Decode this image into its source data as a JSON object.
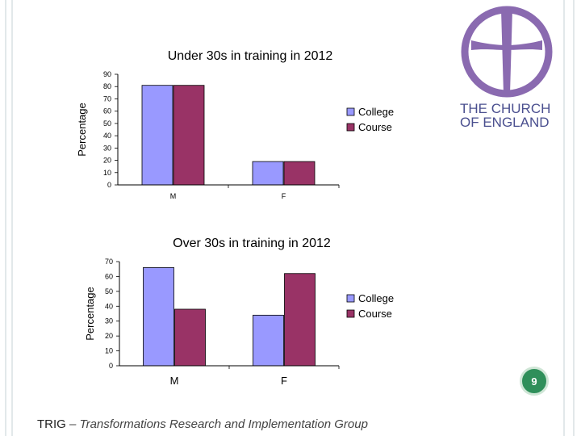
{
  "chart_data": [
    {
      "type": "bar",
      "title": "Under 30s in training in 2012",
      "ylabel": "Percentage",
      "xlabel": "",
      "categories": [
        "M",
        "F"
      ],
      "series": [
        {
          "name": "College",
          "values": [
            81,
            19
          ],
          "color": "#9999ff"
        },
        {
          "name": "Course",
          "values": [
            81,
            19
          ],
          "color": "#993366"
        }
      ],
      "ylim": [
        0,
        90
      ],
      "yticks": [
        "0",
        "10",
        "20",
        "30",
        "40",
        "50",
        "60",
        "70",
        "80",
        "90"
      ],
      "grid": false,
      "legend_position": "right"
    },
    {
      "type": "bar",
      "title": "Over 30s in training in 2012",
      "ylabel": "Percentage",
      "xlabel": "",
      "categories": [
        "M",
        "F"
      ],
      "series": [
        {
          "name": "College",
          "values": [
            66,
            34
          ],
          "color": "#9999ff"
        },
        {
          "name": "Course",
          "values": [
            38,
            62
          ],
          "color": "#993366"
        }
      ],
      "ylim": [
        0,
        70
      ],
      "yticks": [
        "0",
        "10",
        "20",
        "30",
        "40",
        "50",
        "60",
        "70"
      ],
      "grid": false,
      "legend_position": "right"
    }
  ],
  "logo": {
    "icon": "church-cross-logo-icon",
    "line1": "THE CHURCH",
    "line2": "OF ENGLAND",
    "color": "#4a4f8f"
  },
  "page_number": "9",
  "footer": {
    "abbr": "TRIG",
    "rest": " – Transformations Research and Implementation Group"
  }
}
